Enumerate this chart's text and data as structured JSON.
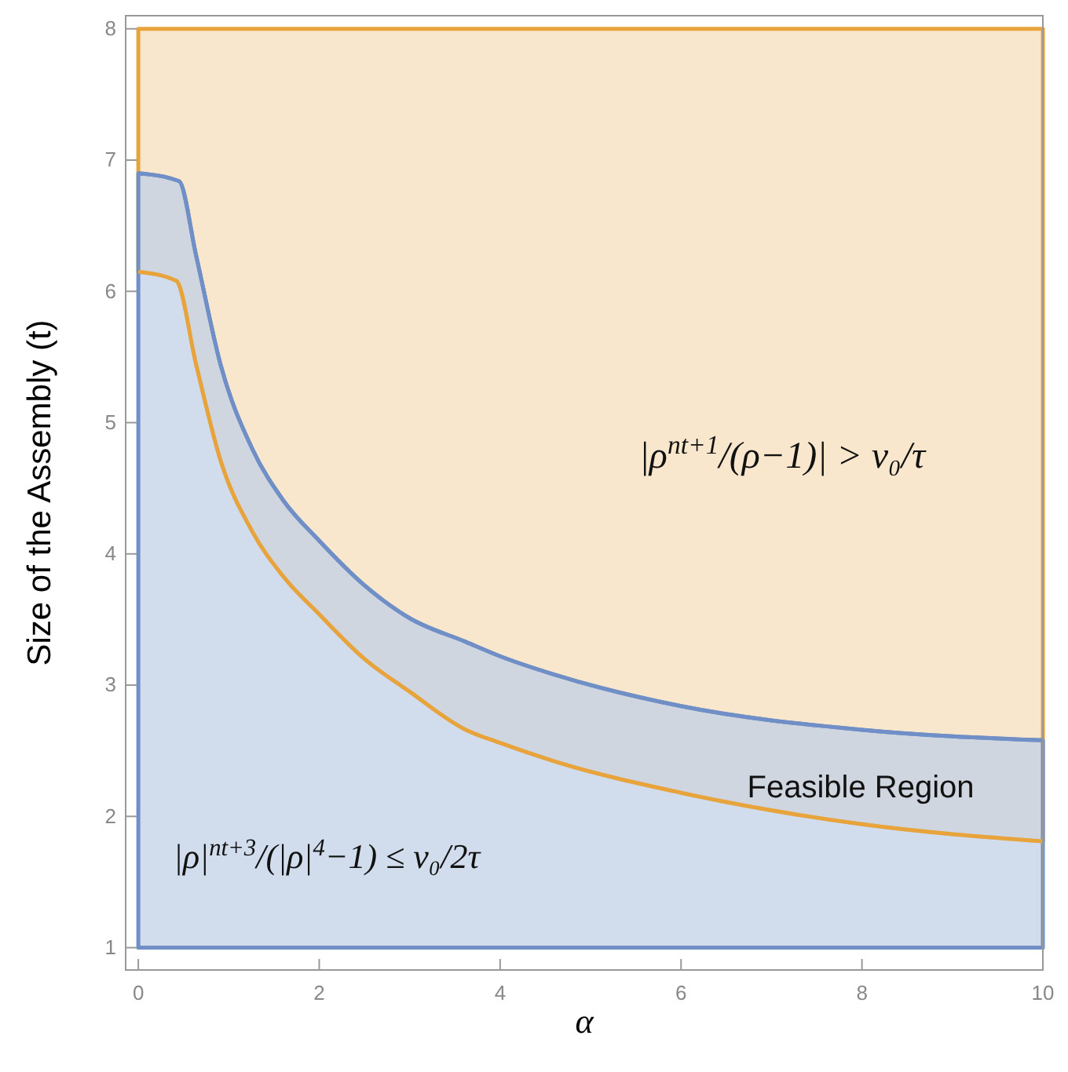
{
  "chart_data": {
    "type": "line",
    "xlabel": "α",
    "ylabel": "Size of the Assembly (t)",
    "xlim": [
      -0.14,
      10
    ],
    "ylim": [
      0.83,
      8.1
    ],
    "xticks": [
      0,
      2,
      4,
      6,
      8,
      10
    ],
    "yticks": [
      1,
      2,
      3,
      4,
      5,
      6,
      7,
      8
    ],
    "series": [
      {
        "color": "#e8a33a",
        "x": [
          0,
          0.42,
          0.64,
          0.91,
          1.26,
          1.6,
          2,
          2.5,
          3,
          3.62,
          4,
          4.6,
          6,
          8,
          10
        ],
        "values": [
          6.15,
          6.08,
          5.44,
          4.71,
          4.17,
          3.83,
          3.54,
          3.2,
          2.95,
          2.66,
          2.56,
          2.42,
          2.18,
          1.94,
          1.81
        ],
        "lower": [
          6.15,
          6.08,
          5.44,
          4.71,
          4.17,
          3.83,
          3.54,
          3.2,
          2.95,
          2.66,
          2.56,
          2.42,
          2.18,
          1.94,
          1.81
        ],
        "upper": [
          8,
          8,
          8,
          8,
          8,
          8,
          8,
          8,
          8,
          8,
          8,
          8,
          8,
          8,
          8
        ]
      },
      {
        "color": "#6f8fc6",
        "x": [
          0,
          0.45,
          0.64,
          0.91,
          1.26,
          1.6,
          2,
          2.5,
          3,
          3.62,
          4,
          4.6,
          6,
          8,
          10
        ],
        "values": [
          6.9,
          6.84,
          6.27,
          5.44,
          4.8,
          4.41,
          4.1,
          3.76,
          3.51,
          3.33,
          3.22,
          3.08,
          2.84,
          2.66,
          2.58
        ],
        "lower": [
          1,
          1,
          1,
          1,
          1,
          1,
          1,
          1,
          1,
          1,
          1,
          1,
          1,
          1,
          1
        ],
        "upper": [
          6.9,
          6.84,
          6.27,
          5.44,
          4.8,
          4.41,
          4.1,
          3.76,
          3.51,
          3.33,
          3.22,
          3.08,
          2.84,
          2.66,
          2.58
        ]
      }
    ],
    "annotations": [
      "|ρ$^{nt+1}$/(ρ−1)| > ν₀/τ",
      "|ρ|$^{nt+3}$/(|ρ|$^{4}$−1) ≤ ν₀/2τ",
      "Feasible Region"
    ]
  }
}
